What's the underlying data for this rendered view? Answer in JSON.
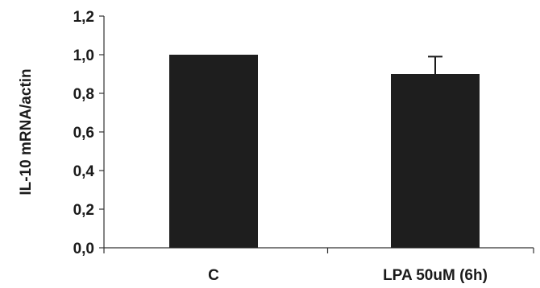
{
  "chart_data": {
    "type": "bar",
    "title": "",
    "xlabel": "",
    "ylabel": "IL-10 mRNA/actin",
    "categories": [
      "C",
      "LPA 50uM (6h)"
    ],
    "values": [
      1.0,
      0.9
    ],
    "error_plus": [
      0.0,
      0.09
    ],
    "ylim": [
      0.0,
      1.2
    ],
    "yticks": [
      0.0,
      0.2,
      0.4,
      0.6,
      0.8,
      1.0,
      1.2
    ],
    "ytick_labels": [
      "0,0",
      "0,2",
      "0,4",
      "0,6",
      "0,8",
      "1,0",
      "1,2"
    ],
    "grid": false,
    "legend": "none",
    "bar_color": "#1e1e1e"
  }
}
